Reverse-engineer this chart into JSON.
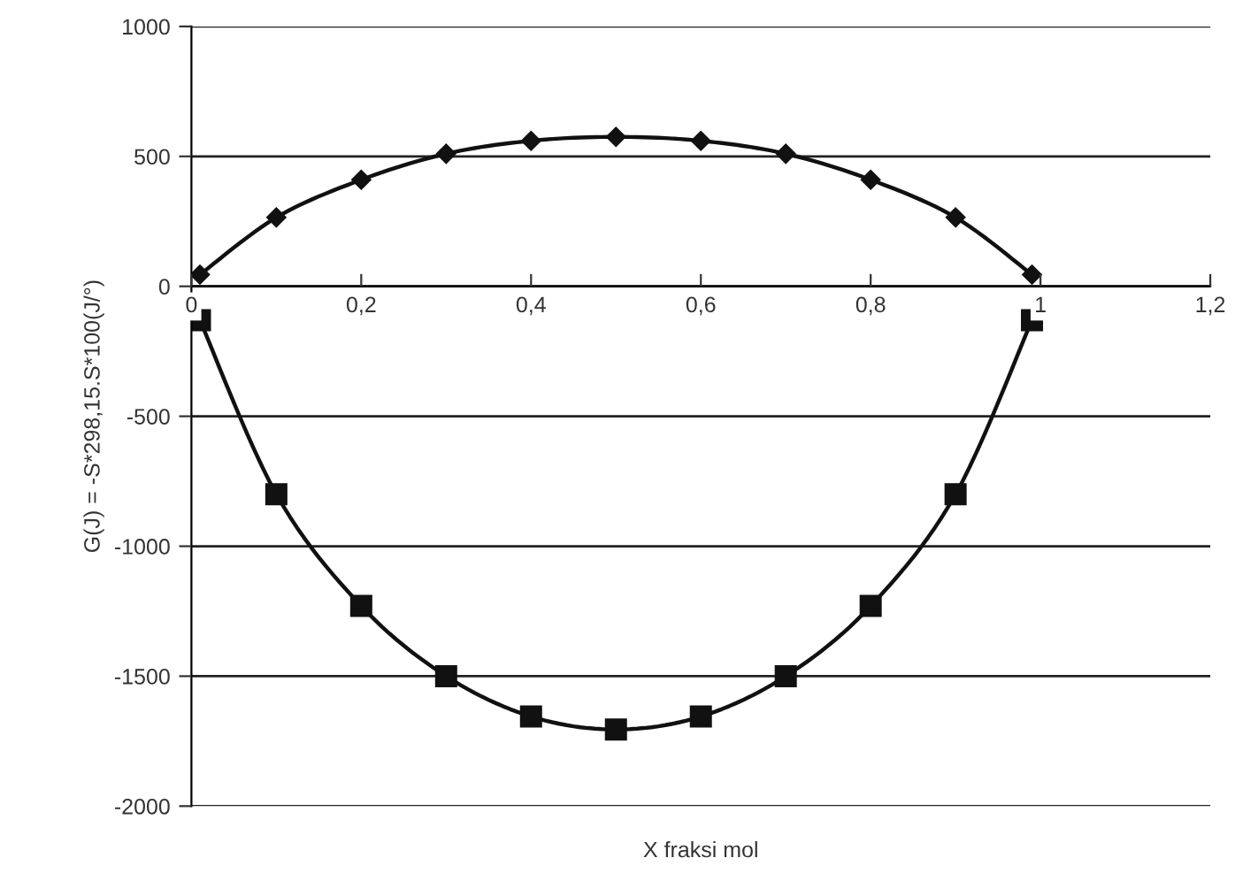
{
  "chart_data": {
    "type": "line",
    "xlabel": "X fraksi mol",
    "ylabel": "G(J) = -S*298,15.S*100(J/°)",
    "x": [
      0.01,
      0.1,
      0.2,
      0.3,
      0.4,
      0.5,
      0.6,
      0.7,
      0.8,
      0.9,
      0.99
    ],
    "series": [
      {
        "color": "#111111",
        "marker": "diamond",
        "values": [
          45,
          265,
          410,
          510,
          560,
          575,
          560,
          510,
          410,
          265,
          45
        ]
      },
      {
        "color": "#111111",
        "marker": "square",
        "values": [
          -130,
          -800,
          -1230,
          -1500,
          -1655,
          -1705,
          -1655,
          -1500,
          -1230,
          -800,
          -130
        ]
      }
    ],
    "xlim": [
      0,
      1.2
    ],
    "xticks": [
      0,
      {
        "value": 0.2,
        "label": "0,2"
      },
      {
        "value": 0.4,
        "label": "0,4"
      },
      {
        "value": 0.6,
        "label": "0,6"
      },
      {
        "value": 0.8,
        "label": "0,8"
      },
      1,
      {
        "value": 1.2,
        "label": "1,2"
      }
    ],
    "ylim": [
      -2000,
      1000
    ],
    "yticks": [
      {
        "value": -2000,
        "label": "-2000"
      },
      {
        "value": -1500,
        "label": "-1500"
      },
      {
        "value": -1000,
        "label": "-1000"
      },
      {
        "value": -500,
        "label": "-500"
      },
      0,
      500,
      1000
    ],
    "grid": "y",
    "line_style": "solid"
  }
}
